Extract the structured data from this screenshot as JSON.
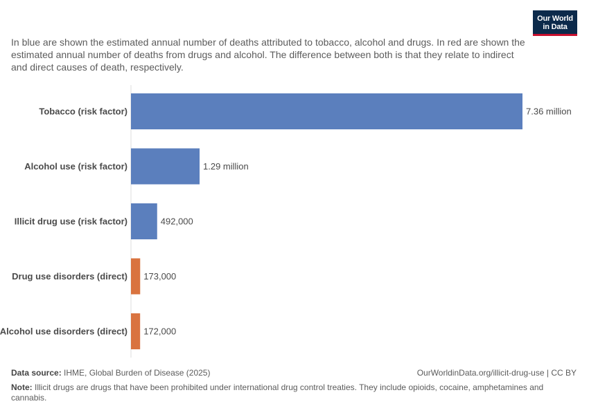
{
  "logo": {
    "line1": "Our World",
    "line2": "in Data"
  },
  "subtitle": "In blue are shown the estimated annual number of deaths attributed to tobacco, alcohol and drugs. In red are shown the estimated annual number of deaths from drugs and alcohol. The difference between both is that they relate to indirect and direct causes of death, respectively.",
  "colors": {
    "risk_factor": "#5b7fbd",
    "direct": "#d9733f",
    "axis": "#dddddd"
  },
  "chart_data": {
    "type": "bar",
    "orientation": "horizontal",
    "categories": [
      "Tobacco (risk factor)",
      "Alcohol use (risk factor)",
      "Illicit drug use (risk factor)",
      "Drug use disorders (direct)",
      "Alcohol use disorders (direct)"
    ],
    "values": [
      7360000,
      1290000,
      492000,
      173000,
      172000
    ],
    "value_labels": [
      "7.36 million",
      "1.29 million",
      "492,000",
      "173,000",
      "172,000"
    ],
    "groups": [
      "risk_factor",
      "risk_factor",
      "risk_factor",
      "direct",
      "direct"
    ],
    "xlim": [
      0,
      7360000
    ]
  },
  "footer": {
    "source_label": "Data source:",
    "source_text": " IHME, Global Burden of Disease (2025)",
    "url": "OurWorldinData.org/illicit-drug-use | CC BY",
    "note_label": "Note:",
    "note_text": " Illicit drugs are drugs that have been prohibited under international drug control treaties. They include opioids, cocaine, amphetamines and cannabis."
  }
}
